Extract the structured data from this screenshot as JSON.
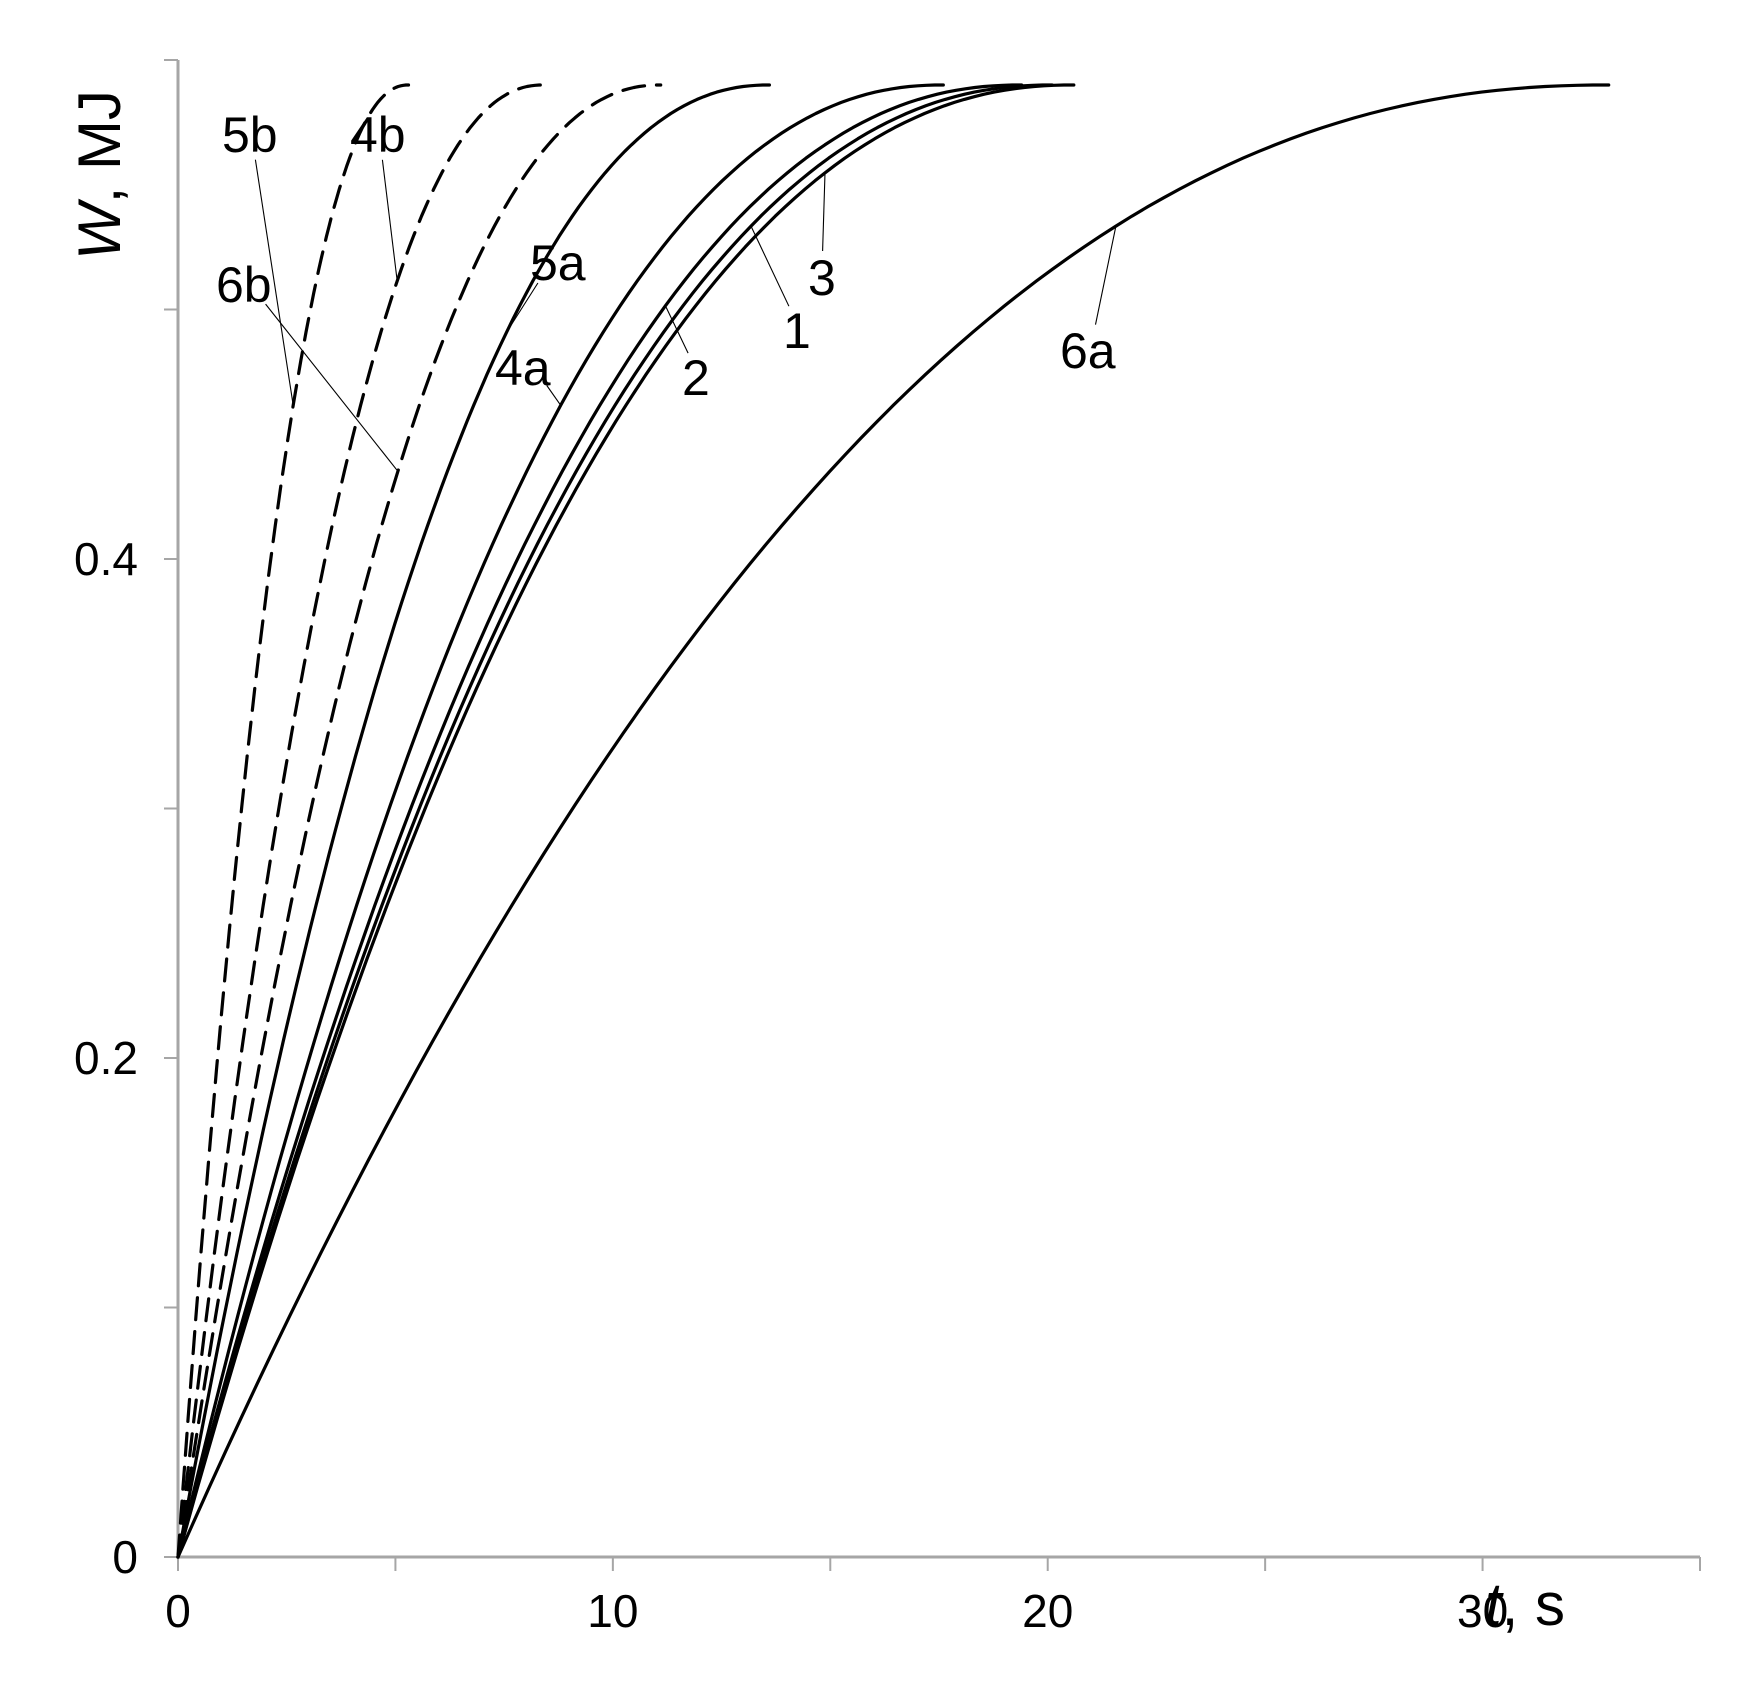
{
  "chart_data": {
    "type": "line",
    "xlabel": "t, s",
    "xlabel_italic": "t",
    "xlabel_unit": ", s",
    "ylabel": "W, MJ",
    "ylabel_italic": "W",
    "ylabel_unit": ", MJ",
    "xlim": [
      0,
      35
    ],
    "ylim": [
      0,
      0.6
    ],
    "x_ticks": [
      0,
      10,
      20,
      30
    ],
    "x_minor_ticks": [
      5,
      15,
      25,
      35
    ],
    "y_ticks": [
      0,
      0.2,
      0.4
    ],
    "y_tick_labels": [
      "0",
      "0.2",
      "0.4"
    ],
    "y_minor_ticks": [
      0.1,
      0.3,
      0.5,
      0.6
    ],
    "grid": false,
    "legend": "none",
    "series": [
      {
        "name": "5b",
        "style": "dashed",
        "t_end": 5.3,
        "w_max": 0.59
      },
      {
        "name": "4b",
        "style": "dashed",
        "t_end": 8.4,
        "w_max": 0.59
      },
      {
        "name": "6b",
        "style": "dashed",
        "t_end": 11.1,
        "w_max": 0.59
      },
      {
        "name": "5a",
        "style": "solid",
        "t_end": 13.6,
        "w_max": 0.59
      },
      {
        "name": "4a",
        "style": "solid",
        "t_end": 17.6,
        "w_max": 0.59
      },
      {
        "name": "2",
        "style": "solid",
        "t_end": 19.4,
        "w_max": 0.59
      },
      {
        "name": "1",
        "style": "solid",
        "t_end": 20.1,
        "w_max": 0.59
      },
      {
        "name": "3",
        "style": "solid",
        "t_end": 20.6,
        "w_max": 0.59
      },
      {
        "name": "6a",
        "style": "solid",
        "t_end": 32.9,
        "w_max": 0.59
      }
    ]
  }
}
